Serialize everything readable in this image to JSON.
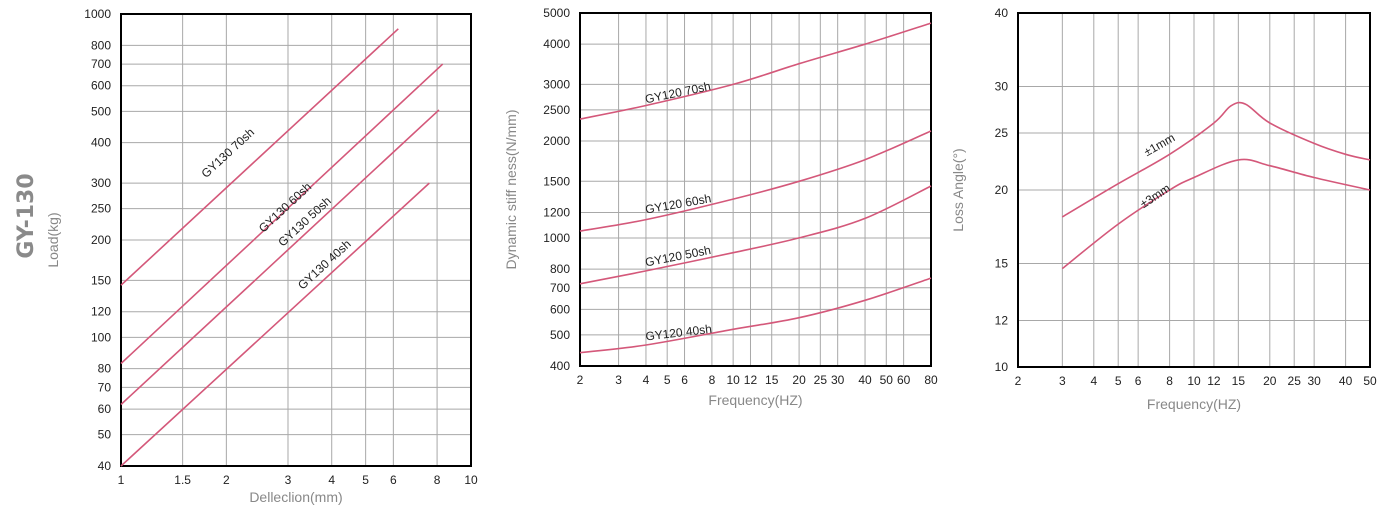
{
  "side_title": "GY-130",
  "colors": {
    "curve": "#d4587a",
    "grid": "#a8a8a8",
    "frame": "#000000"
  },
  "chart_data": [
    {
      "type": "line",
      "scale": "log-log",
      "xlabel": "Delleclion(mm)",
      "ylabel": "Load(kg)",
      "xlim": [
        1,
        10
      ],
      "ylim": [
        40,
        1000
      ],
      "xticks": [
        1,
        1.5,
        2,
        3,
        4,
        5,
        6,
        8,
        10
      ],
      "yticks": [
        40,
        50,
        60,
        70,
        80,
        100,
        120,
        150,
        200,
        250,
        300,
        400,
        500,
        600,
        700,
        800,
        1000
      ],
      "grid": true,
      "series": [
        {
          "name": "GY130 70sh",
          "x": [
            1,
            6.2
          ],
          "y": [
            145,
            900
          ]
        },
        {
          "name": "GY130 60sh",
          "x": [
            1,
            8.3
          ],
          "y": [
            83,
            700
          ]
        },
        {
          "name": "GY130 50sh",
          "x": [
            1,
            8.1
          ],
          "y": [
            62,
            505
          ]
        },
        {
          "name": "GY130 40sh",
          "x": [
            1,
            7.6
          ],
          "y": [
            40,
            300
          ]
        }
      ],
      "labels": [
        {
          "text": "GY130 70sh",
          "x": 1.75,
          "y": 310
        },
        {
          "text": "GY130 60sh",
          "x": 2.55,
          "y": 210
        },
        {
          "text": "GY130 50sh",
          "x": 2.9,
          "y": 190
        },
        {
          "text": "GY130 40sh",
          "x": 3.3,
          "y": 140
        }
      ]
    },
    {
      "type": "line",
      "scale": "log-log",
      "xlabel": "Frequency(HZ)",
      "ylabel": "Dynamic stiff ness(N/mm)",
      "xlim": [
        2,
        80
      ],
      "ylim": [
        400,
        5000
      ],
      "xticks": [
        2,
        3,
        4,
        5,
        6,
        8,
        10,
        12,
        15,
        20,
        25,
        30,
        40,
        50,
        60,
        80
      ],
      "yticks": [
        400,
        500,
        600,
        700,
        800,
        1000,
        1200,
        1500,
        2000,
        2500,
        3000,
        4000,
        5000
      ],
      "grid": true,
      "series": [
        {
          "name": "GY120 70sh",
          "x": [
            2,
            4,
            10,
            20,
            40,
            80
          ],
          "y": [
            2340,
            2580,
            3000,
            3480,
            4000,
            4650
          ]
        },
        {
          "name": "GY120 60sh",
          "x": [
            2,
            4,
            10,
            20,
            40,
            80
          ],
          "y": [
            1050,
            1140,
            1320,
            1500,
            1750,
            2150
          ]
        },
        {
          "name": "GY120 50sh",
          "x": [
            2,
            4,
            10,
            20,
            40,
            80
          ],
          "y": [
            720,
            790,
            900,
            1000,
            1150,
            1450
          ]
        },
        {
          "name": "GY120 40sh",
          "x": [
            2,
            4,
            10,
            20,
            40,
            80
          ],
          "y": [
            440,
            465,
            520,
            565,
            640,
            750
          ]
        }
      ],
      "labels": [
        {
          "text": "GY120 70sh",
          "x": 4,
          "y": 2620
        },
        {
          "text": "GY120 60sh",
          "x": 4,
          "y": 1190
        },
        {
          "text": "GY120 50sh",
          "x": 4,
          "y": 815
        },
        {
          "text": "GY120 40sh",
          "x": 4,
          "y": 480
        }
      ]
    },
    {
      "type": "line",
      "scale": "log-log",
      "xlabel": "Frequency(HZ)",
      "ylabel": "Loss Angle(°)",
      "xlim": [
        2,
        50
      ],
      "ylim": [
        10,
        40
      ],
      "xticks": [
        2,
        3,
        4,
        5,
        6,
        8,
        10,
        12,
        15,
        20,
        25,
        30,
        40,
        50
      ],
      "yticks": [
        10,
        12,
        15,
        20,
        25,
        30,
        40
      ],
      "grid": true,
      "series": [
        {
          "name": "±1mm",
          "x": [
            3,
            5,
            8,
            12,
            14,
            16,
            20,
            30,
            40,
            50
          ],
          "y": [
            18,
            20.5,
            23,
            26,
            27.8,
            28,
            26,
            24,
            23,
            22.5
          ]
        },
        {
          "name": "±3mm",
          "x": [
            3,
            5,
            8,
            10,
            15,
            20,
            30,
            50
          ],
          "y": [
            14.7,
            17.5,
            20,
            21,
            22.5,
            22,
            21,
            20
          ]
        }
      ],
      "labels": [
        {
          "text": "±1mm",
          "x": 6.5,
          "y": 22.8
        },
        {
          "text": "±3mm",
          "x": 6.3,
          "y": 18.6
        }
      ]
    }
  ]
}
